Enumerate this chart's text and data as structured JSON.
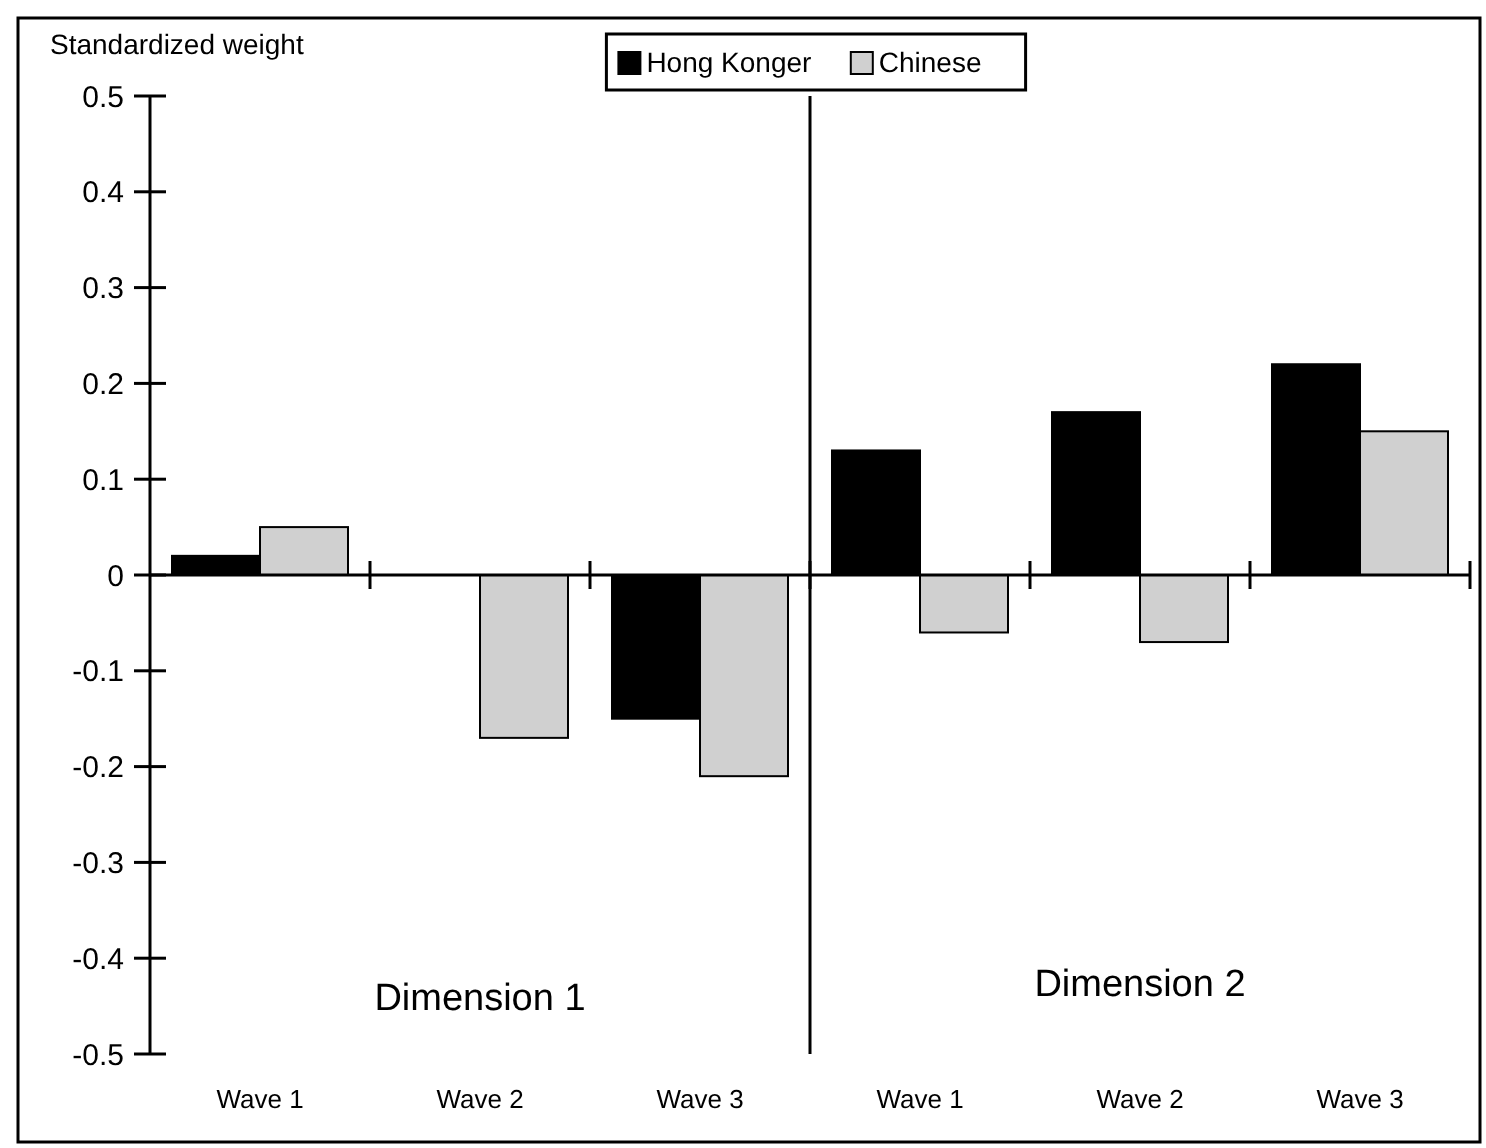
{
  "chart_data": [
    {
      "type": "bar",
      "ylabel": "Standardized weight",
      "categories": [
        "Wave 1",
        "Wave 2",
        "Wave 3"
      ],
      "ylim": [
        -0.5,
        0.5
      ],
      "yticks": [
        -0.5,
        -0.4,
        -0.3,
        -0.2,
        -0.1,
        0,
        0.1,
        0.2,
        0.3,
        0.4,
        0.5
      ],
      "legend": "top",
      "annotations": [
        "Dimension 1"
      ],
      "series": [
        {
          "name": "Hong Konger",
          "color": "#000000",
          "values": [
            0.02,
            0,
            -0.15
          ]
        },
        {
          "name": "Chinese",
          "color": "#d0d0d0",
          "values": [
            0.05,
            -0.17,
            -0.21
          ]
        }
      ]
    },
    {
      "type": "bar",
      "categories": [
        "Wave 1",
        "Wave 2",
        "Wave 3"
      ],
      "ylim": [
        -0.5,
        0.5
      ],
      "tick_labels": "x",
      "annotations": [
        "Dimension 2"
      ],
      "series": [
        {
          "color": "#000000",
          "values": [
            0.13,
            0.17,
            0.22
          ]
        },
        {
          "color": "#d0d0d0",
          "values": [
            -0.06,
            -0.07,
            0.15
          ]
        }
      ]
    }
  ]
}
